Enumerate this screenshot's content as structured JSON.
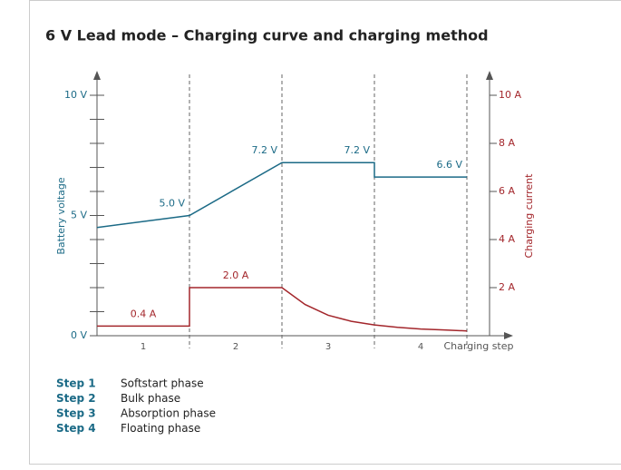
{
  "chart_data": {
    "type": "line",
    "title": "6 V Lead mode – Charging curve and charging method",
    "categories": [
      "1",
      "2",
      "3",
      "4"
    ],
    "xlabel": "Charging step",
    "ylabel": "Battery voltage",
    "y2label": "Charging current",
    "xlim": [
      0,
      4
    ],
    "xticks": [
      1,
      2,
      3,
      4
    ],
    "ylim": [
      0,
      10
    ],
    "yticks": [
      {
        "value": 0,
        "label": "0 V"
      },
      {
        "value": 5,
        "label": "5 V"
      },
      {
        "value": 10,
        "label": "10 V"
      }
    ],
    "yminorticks": [
      1,
      2,
      3,
      4,
      6,
      7,
      8,
      9
    ],
    "y2lim": [
      0,
      10
    ],
    "y2ticks": [
      {
        "value": 2,
        "label": "2 A"
      },
      {
        "value": 4,
        "label": "4 A"
      },
      {
        "value": 6,
        "label": "6 A"
      },
      {
        "value": 8,
        "label": "8 A"
      },
      {
        "value": 10,
        "label": "10 A"
      }
    ],
    "ycolor": "#1b6a86",
    "y2color": "#a3262b",
    "series": [
      {
        "name": "Battery voltage",
        "color": "#1b6a86",
        "x": [
          0,
          1,
          2,
          3,
          3,
          4
        ],
        "values": [
          4.5,
          5.0,
          7.2,
          7.2,
          6.6,
          6.6
        ],
        "value_labels": [
          null,
          "5.0 V",
          "7.2 V",
          "7.2 V",
          null,
          "6.6 V"
        ]
      },
      {
        "name": "Charging current",
        "color": "#a3262b",
        "axis": "y2",
        "x": [
          0,
          1,
          1,
          2,
          2.25,
          2.5,
          2.75,
          3,
          3.25,
          3.5,
          3.75,
          4
        ],
        "values": [
          0.4,
          0.4,
          2.0,
          2.0,
          1.3,
          0.85,
          0.6,
          0.45,
          0.35,
          0.28,
          0.24,
          0.2
        ],
        "value_labels": [
          null,
          "0.4 A",
          null,
          "2.0 A",
          null,
          null,
          null,
          null,
          null,
          null,
          null,
          null
        ]
      }
    ],
    "steps": [
      {
        "label": "Step 1",
        "text": "Softstart phase"
      },
      {
        "label": "Step 2",
        "text": "Bulk phase"
      },
      {
        "label": "Step 3",
        "text": "Absorption phase"
      },
      {
        "label": "Step 4",
        "text": "Floating phase"
      }
    ]
  }
}
